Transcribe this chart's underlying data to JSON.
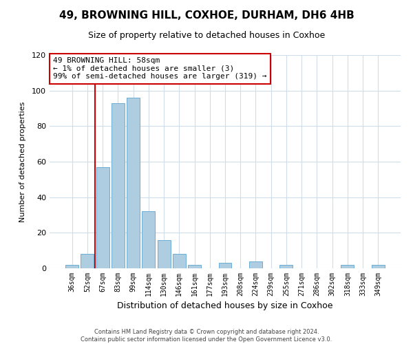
{
  "title": "49, BROWNING HILL, COXHOE, DURHAM, DH6 4HB",
  "subtitle": "Size of property relative to detached houses in Coxhoe",
  "xlabel": "Distribution of detached houses by size in Coxhoe",
  "ylabel": "Number of detached properties",
  "bin_labels": [
    "36sqm",
    "52sqm",
    "67sqm",
    "83sqm",
    "99sqm",
    "114sqm",
    "130sqm",
    "146sqm",
    "161sqm",
    "177sqm",
    "193sqm",
    "208sqm",
    "224sqm",
    "239sqm",
    "255sqm",
    "271sqm",
    "286sqm",
    "302sqm",
    "318sqm",
    "333sqm",
    "349sqm"
  ],
  "bar_values": [
    2,
    8,
    57,
    93,
    96,
    32,
    16,
    8,
    2,
    0,
    3,
    0,
    4,
    0,
    2,
    0,
    0,
    0,
    2,
    0,
    2
  ],
  "bar_color": "#aecde1",
  "bar_edge_color": "#6aadd5",
  "ylim": [
    0,
    120
  ],
  "yticks": [
    0,
    20,
    40,
    60,
    80,
    100,
    120
  ],
  "annotation_title": "49 BROWNING HILL: 58sqm",
  "annotation_line1": "← 1% of detached houses are smaller (3)",
  "annotation_line2": "99% of semi-detached houses are larger (319) →",
  "red_line_x": 1.5,
  "footer_line1": "Contains HM Land Registry data © Crown copyright and database right 2024.",
  "footer_line2": "Contains public sector information licensed under the Open Government Licence v3.0.",
  "annotation_box_color": "#ffffff",
  "annotation_box_edge": "#cc0000",
  "red_line_color": "#cc0000",
  "background_color": "#ffffff",
  "grid_color": "#d0dce8"
}
